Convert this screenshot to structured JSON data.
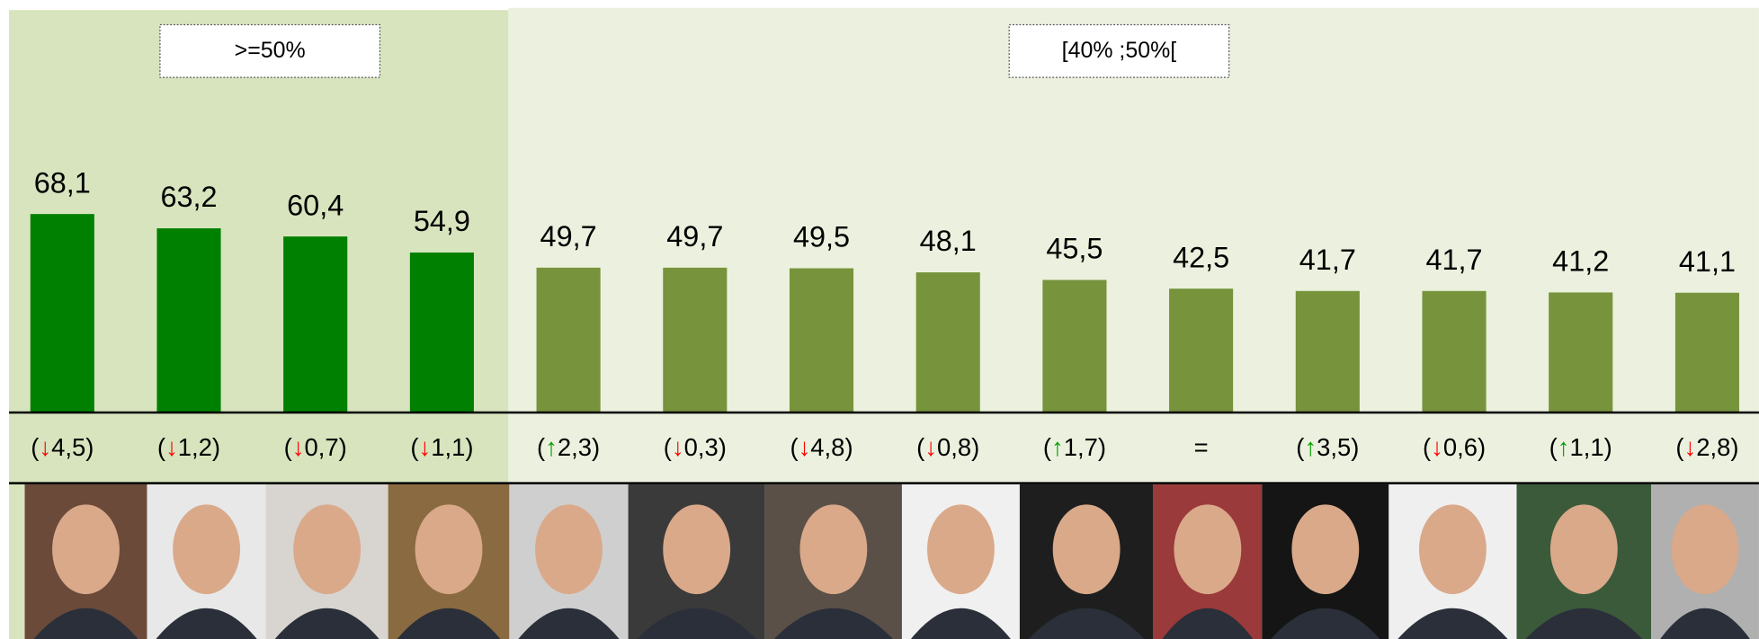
{
  "chart_data": {
    "type": "bar",
    "series": [
      {
        "name": ">=50%",
        "color": "#008000",
        "background": "#d7e4bd",
        "values": [
          68.1,
          63.2,
          60.4,
          54.9
        ],
        "value_labels": [
          "68,1",
          "63,2",
          "60,4",
          "54,9"
        ],
        "changes": [
          [
            "(",
            "↓",
            "4,5)"
          ],
          [
            "(",
            "↓",
            "1,2)"
          ],
          [
            "(",
            "↓",
            "0,7)"
          ],
          [
            "(",
            "↓",
            "1,1)"
          ]
        ],
        "change_colors": [
          "#ff0000",
          "#ff0000",
          "#ff0000",
          "#ff0000"
        ]
      },
      {
        "name": "[40% ;50%[",
        "color": "#77933c",
        "background": "#ebf1de",
        "values": [
          49.7,
          49.7,
          49.5,
          48.1,
          45.5,
          42.5,
          41.7,
          41.7,
          41.2,
          41.1
        ],
        "value_labels": [
          "49,7",
          "49,7",
          "49,5",
          "48,1",
          "45,5",
          "42,5",
          "41,7",
          "41,7",
          "41,2",
          "41,1"
        ],
        "changes": [
          [
            "(",
            "↑",
            "2,3)"
          ],
          [
            "(",
            "↓",
            "0,3)"
          ],
          [
            "(",
            "↓",
            "4,8)"
          ],
          [
            "(",
            "↓",
            "0,8)"
          ],
          [
            "(",
            "↑",
            "1,7)"
          ],
          [
            "="
          ],
          [
            "(",
            "↑",
            "3,5)"
          ],
          [
            "(",
            "↓",
            "0,6)"
          ],
          [
            "(",
            "↑",
            "1,1)"
          ],
          [
            "(",
            "↓",
            "2,8)"
          ]
        ],
        "change_colors": [
          "#00a000",
          "#ff0000",
          "#ff0000",
          "#ff0000",
          "#00a000",
          "#000000",
          "#00a000",
          "#ff0000",
          "#00a000",
          "#ff0000"
        ]
      }
    ]
  }
}
